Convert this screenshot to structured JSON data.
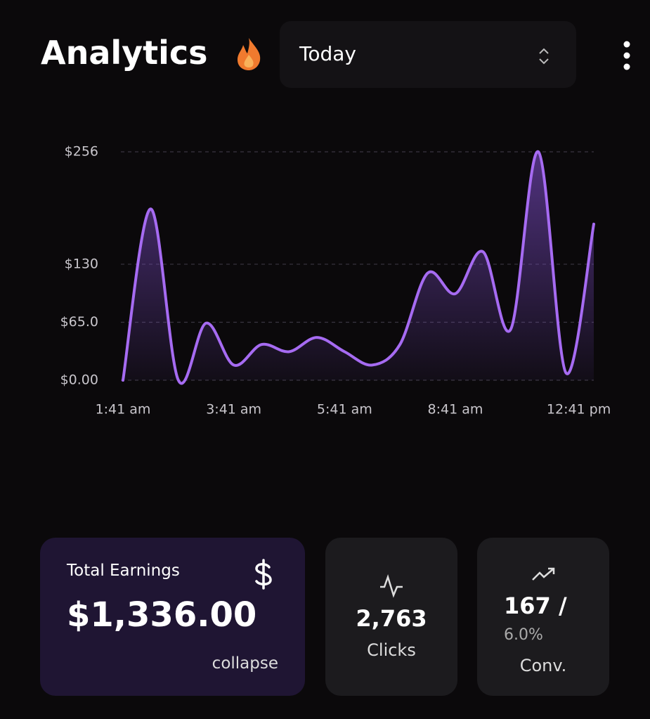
{
  "header": {
    "title": "Analytics",
    "period": "Today"
  },
  "chart_data": {
    "type": "line",
    "categories": [
      "1:41 am",
      null,
      null,
      null,
      "3:41 am",
      null,
      null,
      null,
      "5:41 am",
      null,
      null,
      null,
      "8:41 am",
      null,
      null,
      null,
      "12:41 pm",
      null
    ],
    "values": [
      0,
      192,
      0,
      64,
      17,
      40,
      32,
      48,
      32,
      17,
      40,
      120,
      97,
      144,
      57,
      256,
      8,
      175
    ],
    "color": "#a66bf2",
    "ylim": [
      0,
      256
    ],
    "yticks": [
      {
        "value": 0,
        "label": "$0.00"
      },
      {
        "value": 65,
        "label": "$65.0"
      },
      {
        "value": 130,
        "label": "$130"
      },
      {
        "value": 256,
        "label": "$256"
      }
    ],
    "grid": true
  },
  "cards": {
    "earnings": {
      "title": "Total Earnings",
      "value": "$1,336.00",
      "action": "collapse"
    },
    "clicks": {
      "value": "2,763",
      "label": "Clicks"
    },
    "conversions": {
      "value": "167 /",
      "rate": "6.0%",
      "label": "Conv."
    }
  }
}
